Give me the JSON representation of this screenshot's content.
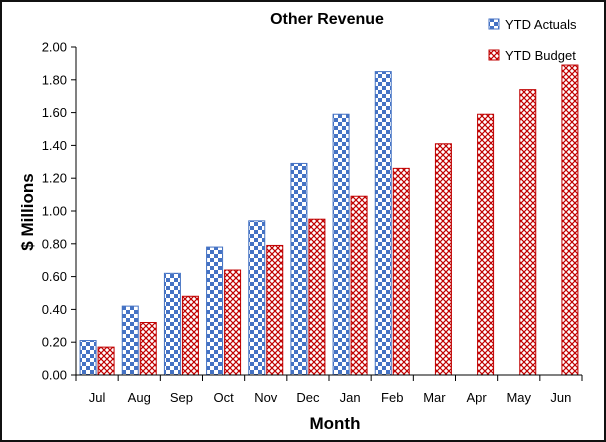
{
  "chart_data": {
    "type": "bar",
    "title": "Other Revenue",
    "xlabel": "Month",
    "ylabel": "$ Millions",
    "categories": [
      "Jul",
      "Aug",
      "Sep",
      "Oct",
      "Nov",
      "Dec",
      "Jan",
      "Feb",
      "Mar",
      "Apr",
      "May",
      "Jun"
    ],
    "series": [
      {
        "name": "YTD Actuals",
        "color": "#4472c4",
        "values": [
          0.21,
          0.42,
          0.62,
          0.78,
          0.94,
          1.29,
          1.59,
          1.85,
          null,
          null,
          null,
          null
        ]
      },
      {
        "name": "YTD Budget",
        "color": "#c00000",
        "values": [
          0.17,
          0.32,
          0.48,
          0.64,
          0.79,
          0.95,
          1.09,
          1.26,
          1.41,
          1.59,
          1.74,
          1.89
        ]
      }
    ],
    "ylim": [
      0,
      2.0
    ],
    "yticks": [
      "0.00",
      "0.20",
      "0.40",
      "0.60",
      "0.80",
      "1.00",
      "1.20",
      "1.40",
      "1.60",
      "1.80",
      "2.00"
    ],
    "grid": false,
    "legend": "top-right"
  }
}
